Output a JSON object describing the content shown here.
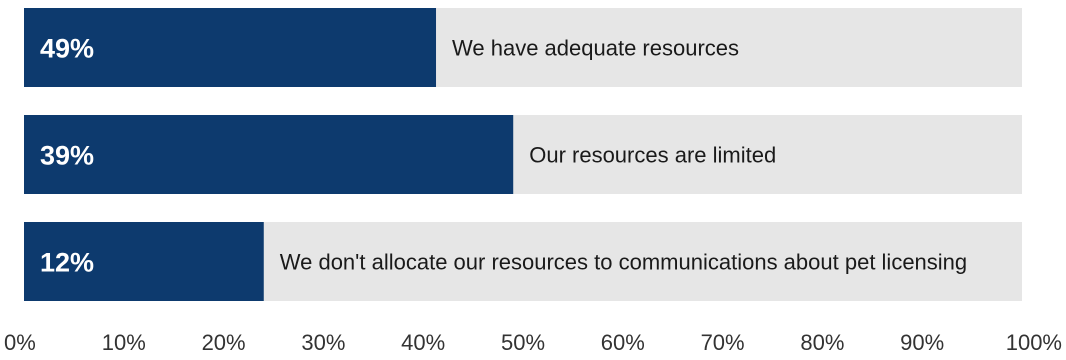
{
  "chart_data": {
    "type": "bar",
    "orientation": "horizontal",
    "categories": [
      "We have adequate resources",
      "Our resources are limited",
      "We don't allocate our resources to communications about pet licensing"
    ],
    "values": [
      49,
      39,
      12
    ],
    "value_labels": [
      "49%",
      "39%",
      "12%"
    ],
    "xlim": [
      0,
      100
    ],
    "x_ticks": [
      0,
      10,
      20,
      30,
      40,
      50,
      60,
      70,
      80,
      90,
      100
    ],
    "x_tick_labels": [
      "0%",
      "10%",
      "20%",
      "30%",
      "40%",
      "50%",
      "60%",
      "70%",
      "80%",
      "90%",
      "100%"
    ],
    "grid": false,
    "title": "",
    "xlabel": "",
    "ylabel": "",
    "colors": {
      "bar": "#0d3a6e",
      "track": "#e6e6e6",
      "value_text": "#ffffff"
    }
  }
}
